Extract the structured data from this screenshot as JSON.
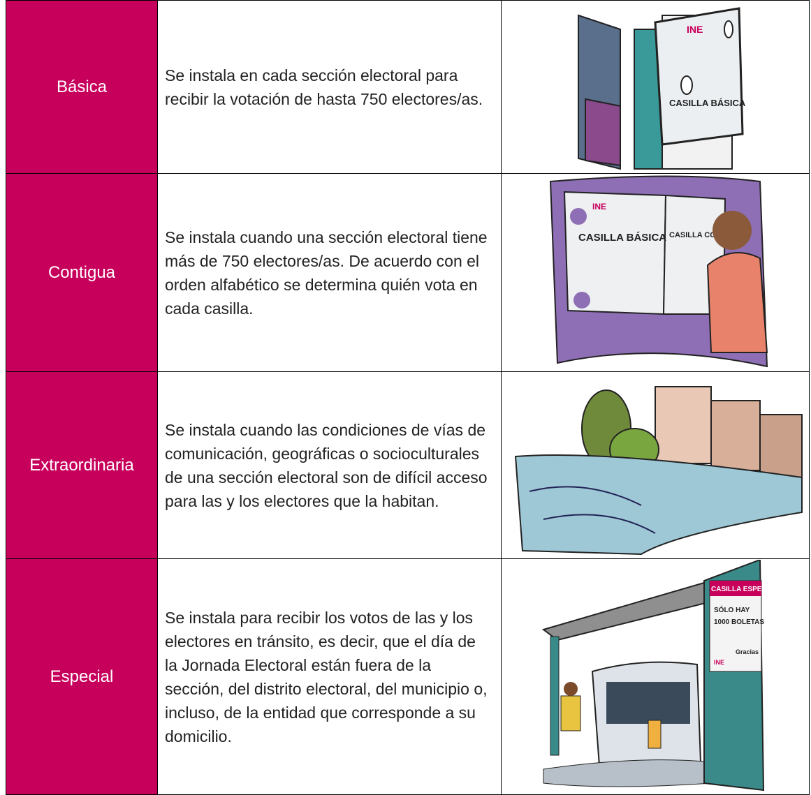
{
  "table": {
    "rows": [
      {
        "type": "Básica",
        "description": "Se instala en cada sección electoral para recibir la votación de hasta 750 electores/as.",
        "illustration": [
          "INE",
          "CASILLA BÁSICA"
        ]
      },
      {
        "type": "Contigua",
        "description": "Se instala cuando una sección electoral tiene más de 750 electores/as. De acuerdo con el orden alfabético se determina quién vota en cada casilla.",
        "illustration": [
          "INE",
          "CASILLA BÁSICA",
          "CASILLA CONTIGUA"
        ]
      },
      {
        "type": "Extraordinaria",
        "description": "Se instala cuando las condiciones de vías de comunicación, geográficas o socioculturales de una sección electoral son de difícil acceso para las y los electores que la habitan."
      },
      {
        "type": "Especial",
        "description": "Se instala para recibir los votos de las y los electores en tránsito, es decir, que el día de la Jornada Electoral están fuera de la sección, del distrito electoral, del municipio o, incluso, de la entidad que corresponde a su domicilio.",
        "illustration": [
          "CASILLA ESPECIAL",
          "SÓLO HAY",
          "1000 BOLETAS",
          "Gracias",
          "INE"
        ]
      }
    ]
  }
}
